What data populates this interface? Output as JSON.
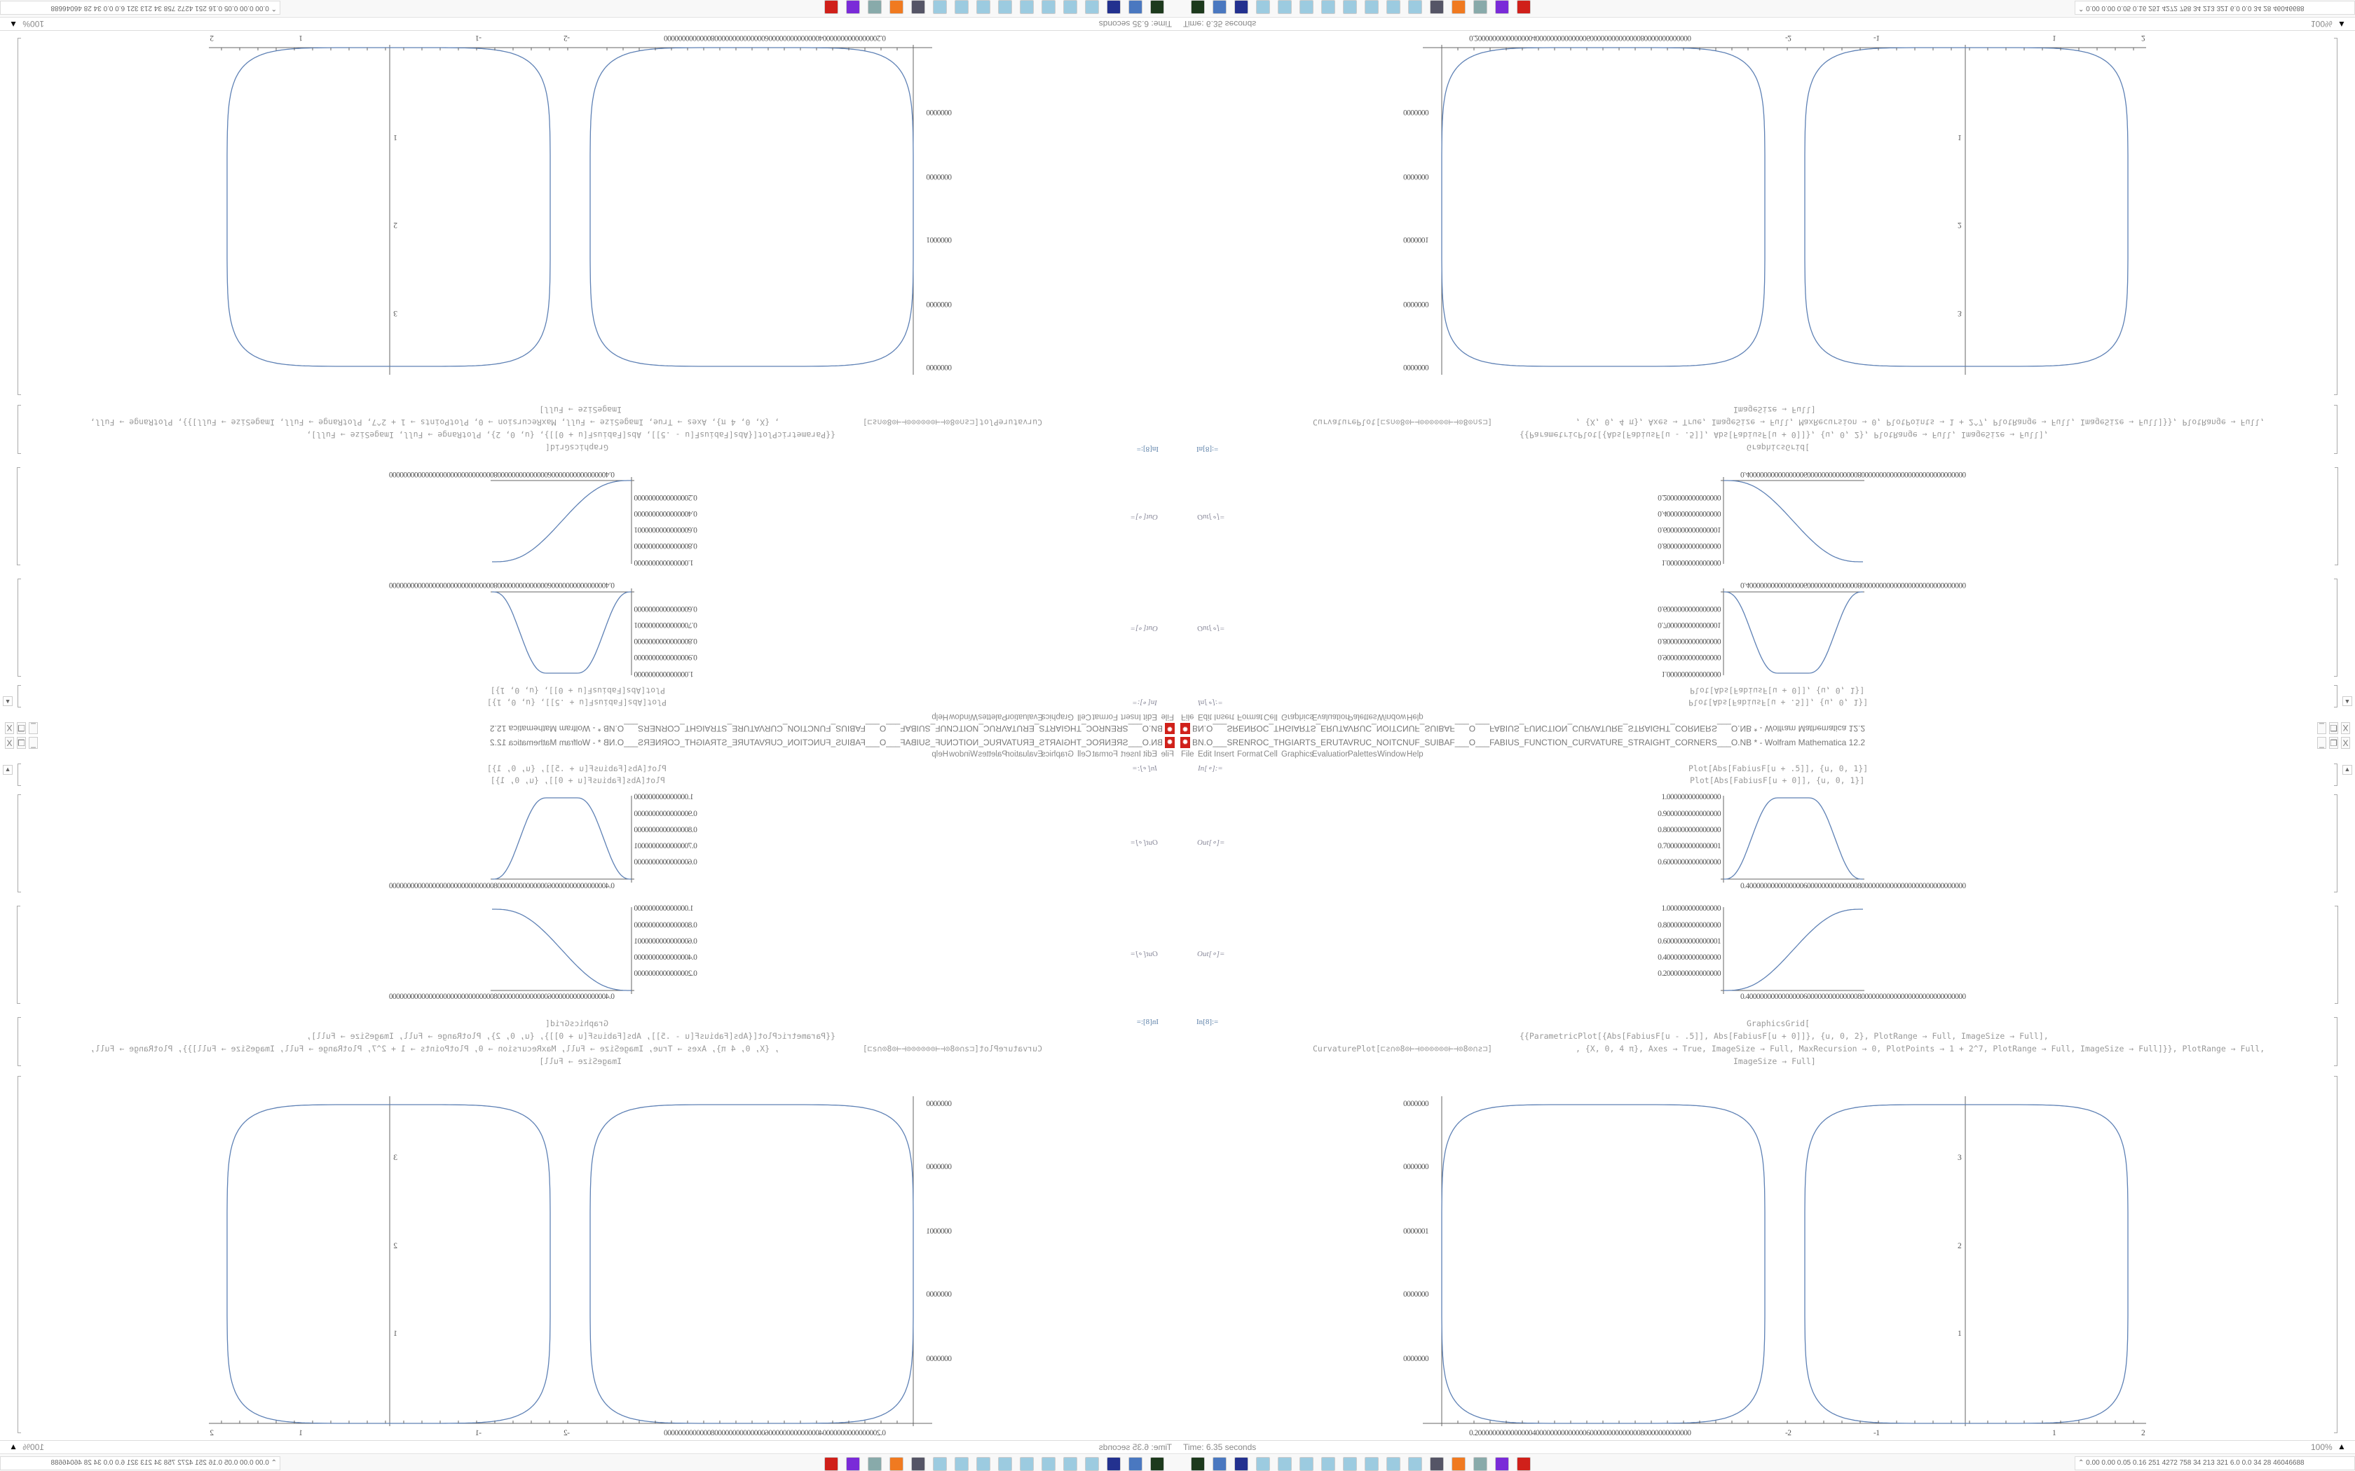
{
  "window": {
    "title": "BN.O___SRENROC_THGIARTS_ERUTAVRUC_NOITCNUF_SUIBAF___O___FABIUS_FUNCTION_CURVATURE_STRAIGHT_CORNERS___O.NB * - Wolfram Mathematica 12.2",
    "app_icon": "mathematica-gear-icon",
    "minimize": "_",
    "restore": "❐",
    "close": "X"
  },
  "menu": [
    "File",
    "Edit",
    "Insert",
    "Format",
    "Cell",
    "Graphics",
    "Evaluation",
    "Palettes",
    "Window",
    "Help"
  ],
  "cells": {
    "in1_label": "In[∘]:=",
    "in1_line1": "Plot[Abs[FabiusF[u + .5]], {u, 0, 1}]",
    "in1_line2": "Plot[Abs[FabiusF[u + 0]], {u, 0, 1}]",
    "out1_label": "Out[∘]=",
    "out2_label": "Out[∘]=",
    "in2_label": "In[8]:=",
    "in2_line1": "GraphicsGrid[",
    "in2_line2": "{{ParametricPlot[{Abs[FabiusF[u - .5]], Abs[FabiusF[u + 0]]}, {u, 0, 2}, PlotRange → Full, ImageSize → Full],",
    "in2_line3a": "CurvaturePlot[⊏ƨ∩⊙8⊙⊢⊣⊙⊙⊙⊙⊙⊙⊢⊣⊙8⊙∩ƨ⊐]",
    "in2_line3b": ", {X, 0, 4 π}, Axes → True, ImageSize → Full, MaxRecursion → 0, PlotPoints → 1 + 2^7, PlotRange → Full, ImageSize → Full]}}, PlotRange → Full,",
    "in2_line4": "ImageSize → Full]"
  },
  "plot1": {
    "yticks": [
      "1.000000000000000",
      "0.9000000000000000",
      "0.8000000000000000",
      "0.7000000000000001",
      "0.6000000000000000"
    ],
    "xticks": "0.4000000000000000600000000000000800000000000000000000000000000"
  },
  "plot2": {
    "yticks": [
      "1.000000000000000",
      "0.8000000000000000",
      "0.6000000000000001",
      "0.4000000000000000",
      "0.2000000000000000"
    ],
    "xticks": "0.4000000000000000600000000000000800000000000000000000000000000"
  },
  "grid_left": {
    "yticks": [
      "0000000",
      "0000000",
      "0000001",
      "0000000",
      "0000000"
    ],
    "xticks": "0.200000000000000040000000000000060000000000000080000000000000"
  },
  "grid_right": {
    "xticks": [
      "-2",
      "-1",
      "1",
      "2"
    ],
    "yticks": [
      "1",
      "2",
      "3"
    ]
  },
  "curve_color": "#5e81b5",
  "status": {
    "time": "Time: 6.35 seconds",
    "zoom": "100%"
  },
  "taskbar": {
    "icons": [
      "terminal-icon",
      "monitor-icon",
      "floppy-icon",
      "notepad-icon",
      "notepad-icon",
      "notepad-icon",
      "notepad-icon",
      "notepad-icon",
      "notepad-icon",
      "notepad-icon",
      "notepad-icon",
      "webcam-icon",
      "firefox-icon",
      "document-icon",
      "purple-app-icon",
      "mathematica-icon"
    ],
    "tray_stats": "0.00 0.00 0.05 0.16 251 4272 758 34 213 321 6.0 0.0 34 28 46046688"
  }
}
